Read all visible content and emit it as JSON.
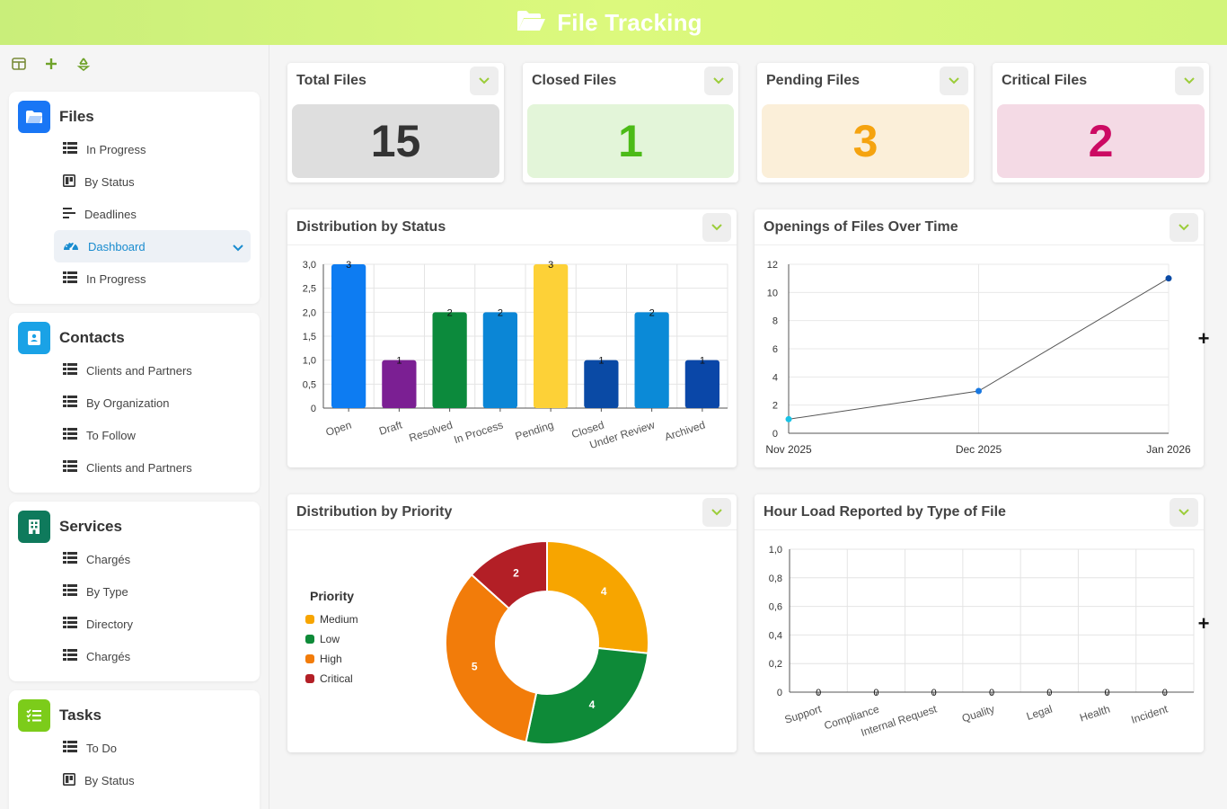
{
  "header": {
    "title": "File Tracking",
    "icon": "folder-open-icon"
  },
  "sidebar": {
    "tools": [
      "layout-icon",
      "plus-icon",
      "recycle-icon"
    ],
    "groups": [
      {
        "title": "Files",
        "icon": "folder-icon",
        "color": "#1976f5",
        "items": [
          {
            "label": "In Progress",
            "icon": "table-icon"
          },
          {
            "label": "By Status",
            "icon": "board-icon"
          },
          {
            "label": "Deadlines",
            "icon": "gantt-icon"
          },
          {
            "label": "Dashboard",
            "icon": "gauge-icon",
            "active": true
          },
          {
            "label": "In Progress",
            "icon": "table-icon"
          }
        ]
      },
      {
        "title": "Contacts",
        "icon": "contact-card-icon",
        "color": "#1aa2e6",
        "items": [
          {
            "label": "Clients and Partners",
            "icon": "table-icon"
          },
          {
            "label": "By Organization",
            "icon": "table-icon"
          },
          {
            "label": "To Follow",
            "icon": "table-icon"
          },
          {
            "label": "Clients and Partners",
            "icon": "table-icon"
          }
        ]
      },
      {
        "title": "Services",
        "icon": "building-icon",
        "color": "#0f7a5c",
        "items": [
          {
            "label": "Chargés",
            "icon": "table-icon"
          },
          {
            "label": "By Type",
            "icon": "table-icon"
          },
          {
            "label": "Directory",
            "icon": "table-icon"
          },
          {
            "label": "Chargés",
            "icon": "table-icon"
          }
        ]
      },
      {
        "title": "Tasks",
        "icon": "checklist-icon",
        "color": "#7ccc1a",
        "items": [
          {
            "label": "To Do",
            "icon": "table-icon"
          },
          {
            "label": "By Status",
            "icon": "board-icon"
          }
        ]
      }
    ]
  },
  "kpis": [
    {
      "title": "Total Files",
      "value": "15",
      "bg": "#dedede",
      "fg": "#333333"
    },
    {
      "title": "Closed Files",
      "value": "1",
      "bg": "#e3f5d9",
      "fg": "#4cbb17"
    },
    {
      "title": "Pending Files",
      "value": "3",
      "bg": "#fbefd9",
      "fg": "#f5a30f"
    },
    {
      "title": "Critical Files",
      "value": "2",
      "bg": "#f4dae5",
      "fg": "#cc0a63"
    }
  ],
  "panels": {
    "status": {
      "title": "Distribution by Status"
    },
    "openings": {
      "title": "Openings of Files Over Time"
    },
    "priority": {
      "title": "Distribution by Priority"
    },
    "hours": {
      "title": "Hour Load Reported by Type of File"
    }
  },
  "chart_data": [
    {
      "id": "status",
      "type": "bar",
      "categories": [
        "Open",
        "Draft",
        "Resolved",
        "In Process",
        "Pending",
        "Closed",
        "Under Review",
        "Archived"
      ],
      "values": [
        3,
        1,
        2,
        2,
        3,
        1,
        2,
        1
      ],
      "colors": [
        "#0d7cf2",
        "#7b1f93",
        "#0c8a3c",
        "#0b86d6",
        "#fdd137",
        "#0a4aa5",
        "#0b8ad7",
        "#0a47a8"
      ],
      "ylim": [
        0,
        3
      ],
      "yticks": [
        "0",
        "0,5",
        "1,0",
        "1,5",
        "2,0",
        "2,5",
        "3,0"
      ],
      "grid": true
    },
    {
      "id": "openings",
      "type": "line",
      "x": [
        "Nov 2025",
        "Dec 2025",
        "Jan 2026"
      ],
      "values": [
        1,
        3,
        11
      ],
      "ylim": [
        0,
        12
      ],
      "yticks": [
        "0",
        "2",
        "4",
        "6",
        "8",
        "10",
        "12"
      ],
      "grid": true
    },
    {
      "id": "priority",
      "type": "pie",
      "legend_title": "Priority",
      "labels": [
        "Medium",
        "Low",
        "High",
        "Critical"
      ],
      "values": [
        4,
        4,
        5,
        2
      ],
      "colors": [
        "#f7a500",
        "#0e8a38",
        "#f27c0a",
        "#b31f26"
      ]
    },
    {
      "id": "hours",
      "type": "bar",
      "categories": [
        "Support",
        "Compliance",
        "Internal Request",
        "Quality",
        "Legal",
        "Health",
        "Incident"
      ],
      "values": [
        0,
        0,
        0,
        0,
        0,
        0,
        0
      ],
      "ylim": [
        0,
        1
      ],
      "yticks": [
        "0",
        "0,2",
        "0,4",
        "0,6",
        "0,8",
        "1,0"
      ],
      "grid": true
    }
  ]
}
